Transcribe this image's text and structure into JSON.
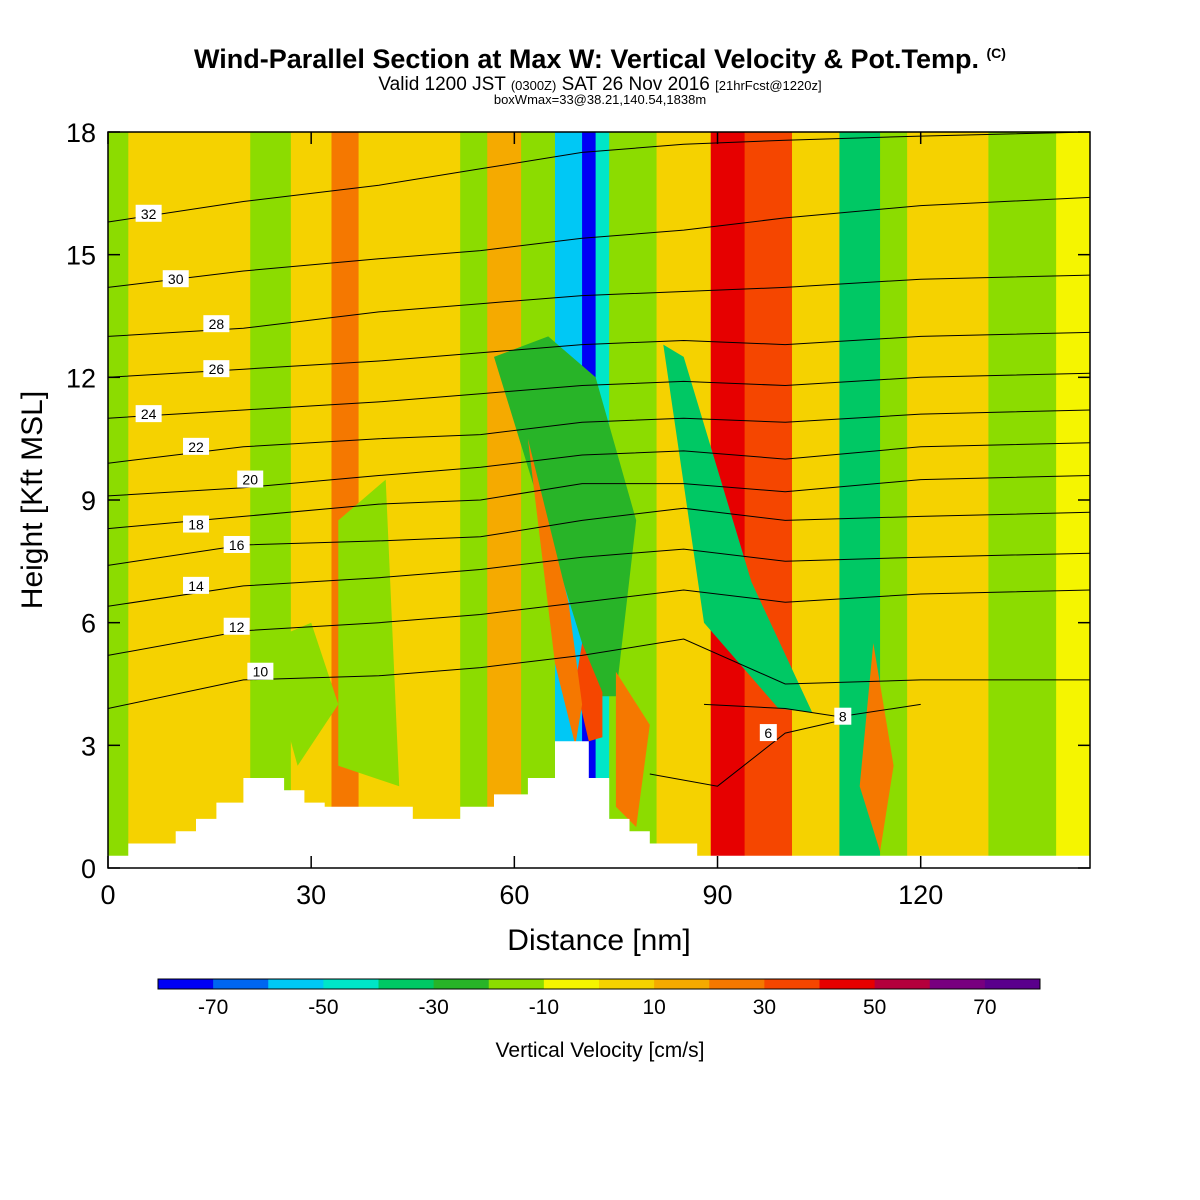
{
  "title": {
    "main": "Wind-Parallel Section at Max W: Vertical Velocity & Pot.Temp.",
    "copyright": "(C)",
    "valid_prefix": "Valid 1200 JST",
    "valid_utc": "(0300Z)",
    "valid_date": "SAT 26 Nov 2016",
    "forecast": "[21hrFcst@1220z]",
    "box_info": "boxWmax=33@38.21,140.54,1838m"
  },
  "chart_data": {
    "type": "heatmap",
    "xlabel": "Distance [nm]",
    "ylabel": "Height [Kft MSL]",
    "xlim": [
      0,
      145
    ],
    "ylim": [
      0,
      18
    ],
    "xticks": [
      "0",
      "30",
      "60",
      "90",
      "120"
    ],
    "yticks": [
      "0",
      "3",
      "6",
      "9",
      "12",
      "15",
      "18"
    ],
    "colorbar": {
      "label": "Vertical Velocity [cm/s]",
      "tick_labels": [
        "-70",
        "-50",
        "-30",
        "-10",
        "10",
        "30",
        "50",
        "70"
      ],
      "bin_edges": [
        -80,
        -70,
        -60,
        -50,
        -40,
        -30,
        -20,
        -10,
        0,
        10,
        20,
        30,
        40,
        50,
        60,
        70,
        80
      ],
      "colors": [
        "#0000f5",
        "#0066f0",
        "#00c8f5",
        "#00e6c8",
        "#00c864",
        "#28b428",
        "#8cdc00",
        "#f5f500",
        "#f5d200",
        "#f5aa00",
        "#f57800",
        "#f54600",
        "#e60000",
        "#b4003c",
        "#78007f",
        "#5a008c"
      ]
    },
    "background_velocity": [
      {
        "x0": 0,
        "x1": 3,
        "value": -15
      },
      {
        "x0": 3,
        "x1": 21,
        "value": 5
      },
      {
        "x0": 21,
        "x1": 27,
        "value": -15
      },
      {
        "x0": 27,
        "x1": 33,
        "value": 5
      },
      {
        "x0": 33,
        "x1": 37,
        "value": 25
      },
      {
        "x0": 37,
        "x1": 52,
        "value": 5
      },
      {
        "x0": 52,
        "x1": 56,
        "value": -15
      },
      {
        "x0": 56,
        "x1": 61,
        "value": 15
      },
      {
        "x0": 61,
        "x1": 66,
        "value": -15
      },
      {
        "x0": 66,
        "x1": 70,
        "value": -55
      },
      {
        "x0": 70,
        "x1": 72,
        "value": -75
      },
      {
        "x0": 72,
        "x1": 74,
        "value": -45
      },
      {
        "x0": 74,
        "x1": 81,
        "value": -15
      },
      {
        "x0": 81,
        "x1": 89,
        "value": 5
      },
      {
        "x0": 89,
        "x1": 94,
        "value": 45
      },
      {
        "x0": 94,
        "x1": 101,
        "value": 35
      },
      {
        "x0": 101,
        "x1": 108,
        "value": 5
      },
      {
        "x0": 108,
        "x1": 114,
        "value": -35
      },
      {
        "x0": 114,
        "x1": 118,
        "value": -15
      },
      {
        "x0": 118,
        "x1": 130,
        "value": 5
      },
      {
        "x0": 130,
        "x1": 140,
        "value": -15
      },
      {
        "x0": 140,
        "x1": 145,
        "value": -5
      }
    ],
    "velocity_features": [
      {
        "value": -25,
        "points": [
          [
            57,
            12.5
          ],
          [
            70,
            5.5
          ],
          [
            72,
            4.2
          ],
          [
            75,
            4.2
          ],
          [
            78,
            8.5
          ],
          [
            72,
            12
          ],
          [
            65,
            13
          ]
        ]
      },
      {
        "value": -35,
        "points": [
          [
            82,
            12.8
          ],
          [
            85,
            12.5
          ],
          [
            95,
            7
          ],
          [
            104,
            3.8
          ],
          [
            99,
            3.9
          ],
          [
            88,
            6
          ]
        ]
      },
      {
        "value": 35,
        "points": [
          [
            70,
            5.5
          ],
          [
            73,
            4.3
          ],
          [
            73,
            3.2
          ],
          [
            71,
            3.1
          ],
          [
            69,
            4.5
          ]
        ]
      },
      {
        "value": 25,
        "points": [
          [
            62,
            10.5
          ],
          [
            68,
            6.5
          ],
          [
            70,
            4
          ],
          [
            69,
            3
          ],
          [
            66,
            5
          ]
        ]
      },
      {
        "value": 25,
        "points": [
          [
            75,
            4.8
          ],
          [
            80,
            3.5
          ],
          [
            78,
            1
          ],
          [
            75,
            1.5
          ]
        ]
      },
      {
        "value": 25,
        "points": [
          [
            113,
            5.5
          ],
          [
            116,
            2.5
          ],
          [
            114,
            0.4
          ],
          [
            111,
            2
          ]
        ]
      },
      {
        "value": -15,
        "points": [
          [
            34,
            8.5
          ],
          [
            41,
            9.5
          ],
          [
            43,
            2
          ],
          [
            34,
            2.5
          ]
        ]
      },
      {
        "value": -15,
        "points": [
          [
            23,
            5.5
          ],
          [
            30,
            6
          ],
          [
            34,
            4
          ],
          [
            28,
            2.5
          ]
        ]
      }
    ],
    "terrain": [
      [
        0,
        0
      ],
      [
        0,
        0.3
      ],
      [
        3,
        0.3
      ],
      [
        3,
        0.6
      ],
      [
        10,
        0.6
      ],
      [
        10,
        0.9
      ],
      [
        13,
        0.9
      ],
      [
        13,
        1.2
      ],
      [
        16,
        1.2
      ],
      [
        16,
        1.6
      ],
      [
        20,
        1.6
      ],
      [
        20,
        2.2
      ],
      [
        26,
        2.2
      ],
      [
        26,
        1.9
      ],
      [
        29,
        1.9
      ],
      [
        29,
        1.6
      ],
      [
        32,
        1.6
      ],
      [
        32,
        1.5
      ],
      [
        45,
        1.5
      ],
      [
        45,
        1.2
      ],
      [
        52,
        1.2
      ],
      [
        52,
        1.5
      ],
      [
        57,
        1.5
      ],
      [
        57,
        1.8
      ],
      [
        62,
        1.8
      ],
      [
        62,
        2.2
      ],
      [
        66,
        2.2
      ],
      [
        66,
        3.1
      ],
      [
        71,
        3.1
      ],
      [
        71,
        2.2
      ],
      [
        74,
        2.2
      ],
      [
        74,
        1.2
      ],
      [
        77,
        1.2
      ],
      [
        77,
        0.9
      ],
      [
        80,
        0.9
      ],
      [
        80,
        0.6
      ],
      [
        87,
        0.6
      ],
      [
        87,
        0.3
      ],
      [
        145,
        0.3
      ],
      [
        145,
        0
      ]
    ],
    "theta_contours": [
      {
        "label": "6",
        "points": [
          [
            80,
            2.3
          ],
          [
            90,
            2.0
          ],
          [
            100,
            3.3
          ],
          [
            108,
            3.6
          ]
        ],
        "label_at": [
          97.5,
          3.3
        ]
      },
      {
        "label": "8",
        "points": [
          [
            88,
            4
          ],
          [
            100,
            3.9
          ],
          [
            108,
            3.7
          ],
          [
            120,
            4.0
          ]
        ],
        "label_at": [
          108.5,
          3.7
        ]
      },
      {
        "label": "10",
        "points": [
          [
            0,
            3.9
          ],
          [
            20,
            4.6
          ],
          [
            40,
            4.7
          ],
          [
            55,
            4.9
          ],
          [
            70,
            5.2
          ],
          [
            85,
            5.6
          ],
          [
            100,
            4.5
          ],
          [
            120,
            4.6
          ],
          [
            145,
            4.6
          ]
        ],
        "label_at": [
          22.5,
          4.8
        ]
      },
      {
        "label": "12",
        "points": [
          [
            0,
            5.2
          ],
          [
            20,
            5.8
          ],
          [
            40,
            6.0
          ],
          [
            55,
            6.2
          ],
          [
            70,
            6.5
          ],
          [
            85,
            6.8
          ],
          [
            100,
            6.5
          ],
          [
            120,
            6.7
          ],
          [
            145,
            6.8
          ]
        ],
        "label_at": [
          19,
          5.9
        ]
      },
      {
        "label": "14",
        "points": [
          [
            0,
            6.4
          ],
          [
            20,
            6.9
          ],
          [
            40,
            7.1
          ],
          [
            55,
            7.3
          ],
          [
            70,
            7.6
          ],
          [
            85,
            7.8
          ],
          [
            100,
            7.5
          ],
          [
            120,
            7.6
          ],
          [
            145,
            7.7
          ]
        ],
        "label_at": [
          13,
          6.9
        ]
      },
      {
        "label": "16",
        "points": [
          [
            0,
            7.4
          ],
          [
            20,
            7.9
          ],
          [
            40,
            8.0
          ],
          [
            55,
            8.1
          ],
          [
            70,
            8.5
          ],
          [
            85,
            8.8
          ],
          [
            100,
            8.5
          ],
          [
            120,
            8.6
          ],
          [
            145,
            8.7
          ]
        ],
        "label_at": [
          19,
          7.9
        ]
      },
      {
        "label": "18",
        "points": [
          [
            0,
            8.3
          ],
          [
            20,
            8.6
          ],
          [
            40,
            8.9
          ],
          [
            55,
            9.0
          ],
          [
            70,
            9.4
          ],
          [
            85,
            9.4
          ],
          [
            100,
            9.2
          ],
          [
            120,
            9.5
          ],
          [
            145,
            9.6
          ]
        ],
        "label_at": [
          13,
          8.4
        ]
      },
      {
        "label": "20",
        "points": [
          [
            0,
            9.1
          ],
          [
            20,
            9.3
          ],
          [
            40,
            9.6
          ],
          [
            55,
            9.8
          ],
          [
            70,
            10.1
          ],
          [
            85,
            10.2
          ],
          [
            100,
            10.0
          ],
          [
            120,
            10.3
          ],
          [
            145,
            10.4
          ]
        ],
        "label_at": [
          21,
          9.5
        ]
      },
      {
        "label": "22",
        "points": [
          [
            0,
            9.9
          ],
          [
            20,
            10.3
          ],
          [
            40,
            10.5
          ],
          [
            55,
            10.6
          ],
          [
            70,
            10.9
          ],
          [
            85,
            11.0
          ],
          [
            100,
            10.9
          ],
          [
            120,
            11.1
          ],
          [
            145,
            11.2
          ]
        ],
        "label_at": [
          13,
          10.3
        ]
      },
      {
        "label": "24",
        "points": [
          [
            0,
            11.0
          ],
          [
            20,
            11.2
          ],
          [
            40,
            11.4
          ],
          [
            55,
            11.6
          ],
          [
            70,
            11.8
          ],
          [
            85,
            11.9
          ],
          [
            100,
            11.8
          ],
          [
            120,
            12.0
          ],
          [
            145,
            12.1
          ]
        ],
        "label_at": [
          6,
          11.1
        ]
      },
      {
        "label": "26",
        "points": [
          [
            0,
            12.0
          ],
          [
            20,
            12.2
          ],
          [
            40,
            12.4
          ],
          [
            55,
            12.6
          ],
          [
            70,
            12.8
          ],
          [
            85,
            12.9
          ],
          [
            100,
            12.8
          ],
          [
            120,
            13.0
          ],
          [
            145,
            13.1
          ]
        ],
        "label_at": [
          16,
          12.2
        ]
      },
      {
        "label": "28",
        "points": [
          [
            0,
            13.0
          ],
          [
            20,
            13.2
          ],
          [
            40,
            13.6
          ],
          [
            55,
            13.8
          ],
          [
            70,
            14.0
          ],
          [
            85,
            14.1
          ],
          [
            100,
            14.2
          ],
          [
            120,
            14.4
          ],
          [
            145,
            14.5
          ]
        ],
        "label_at": [
          16,
          13.3
        ]
      },
      {
        "label": "30",
        "points": [
          [
            0,
            14.2
          ],
          [
            20,
            14.6
          ],
          [
            40,
            14.9
          ],
          [
            55,
            15.1
          ],
          [
            70,
            15.4
          ],
          [
            85,
            15.6
          ],
          [
            100,
            15.9
          ],
          [
            120,
            16.2
          ],
          [
            145,
            16.4
          ]
        ],
        "label_at": [
          10,
          14.4
        ]
      },
      {
        "label": "32",
        "points": [
          [
            0,
            15.8
          ],
          [
            20,
            16.3
          ],
          [
            40,
            16.7
          ],
          [
            55,
            17.1
          ],
          [
            70,
            17.5
          ],
          [
            85,
            17.7
          ],
          [
            100,
            17.8
          ],
          [
            120,
            17.9
          ],
          [
            145,
            18.0
          ]
        ],
        "label_at": [
          6,
          16.0
        ]
      }
    ]
  }
}
